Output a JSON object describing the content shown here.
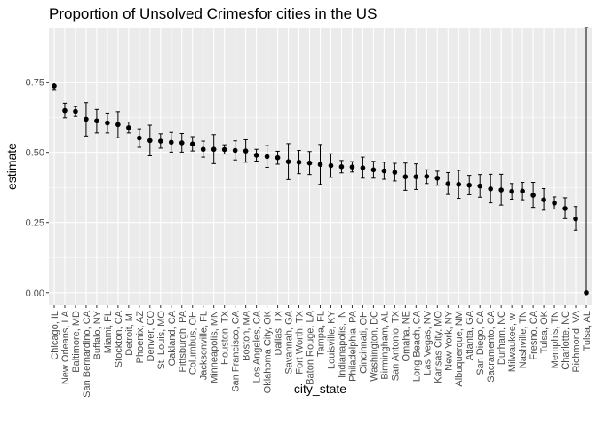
{
  "chart_data": {
    "type": "scatter",
    "title": "Proportion of Unsolved Crimesfor cities in the US",
    "xlabel": "city_state",
    "ylabel": "estimate",
    "ylim": [
      -0.045,
      0.945
    ],
    "yticks": [
      0.0,
      0.25,
      0.5,
      0.75
    ],
    "ytick_labels": [
      "0.00",
      "0.25",
      "0.50",
      "0.75"
    ],
    "grid": true,
    "colors": {
      "panel": "#ebebeb",
      "grid": "#ffffff",
      "point": "#000000"
    },
    "series": [
      {
        "categories": [
          "Chicago, IL",
          "New Orleans, LA",
          "Baltimore, MD",
          "San Bernardino, CA",
          "Buffalo, NY",
          "Miami, FL",
          "Stockton, CA",
          "Detroit, MI",
          "Phoenix, AZ",
          "Denver, CO",
          "St. Louis, MO",
          "Oakland, CA",
          "Pittsburgh, PA",
          "Columbus, OH",
          "Jacksonville, FL",
          "Minneapolis, MN",
          "Houston, TX",
          "San Francisco, CA",
          "Boston, MA",
          "Los Angeles, CA",
          "Oklahoma City, OK",
          "Dallas, TX",
          "Savannah, GA",
          "Fort Worth, TX",
          "Baton Rouge, LA",
          "Tampa, FL",
          "Louisville, KY",
          "Indianapolis, IN",
          "Philadelphia, PA",
          "Cincinnati, OH",
          "Washington, DC",
          "Birmingham, AL",
          "San Antonio, TX",
          "Omaha, NE",
          "Long Beach, CA",
          "Las Vegas, NV",
          "Kansas City, MO",
          "New York, NY",
          "Albuquerque, NM",
          "Atlanta, GA",
          "San Diego, CA",
          "Sacramento, CA",
          "Durham, NC",
          "Milwaukee, wI",
          "Nashville, TN",
          "Fresno, CA",
          "Tulsa, OK",
          "Memphis, TN",
          "Charlotte, NC",
          "Richmond, VA",
          "Tulsa, AL"
        ],
        "estimate": [
          0.736,
          0.649,
          0.646,
          0.618,
          0.612,
          0.605,
          0.599,
          0.588,
          0.551,
          0.542,
          0.54,
          0.536,
          0.534,
          0.53,
          0.511,
          0.511,
          0.51,
          0.507,
          0.505,
          0.49,
          0.485,
          0.481,
          0.467,
          0.465,
          0.462,
          0.457,
          0.453,
          0.449,
          0.448,
          0.445,
          0.438,
          0.434,
          0.429,
          0.413,
          0.413,
          0.414,
          0.408,
          0.388,
          0.386,
          0.383,
          0.38,
          0.37,
          0.366,
          0.361,
          0.362,
          0.347,
          0.331,
          0.319,
          0.3,
          0.263,
          0.0
        ],
        "conf_low": [
          0.724,
          0.623,
          0.628,
          0.558,
          0.569,
          0.569,
          0.552,
          0.569,
          0.518,
          0.488,
          0.515,
          0.501,
          0.501,
          0.505,
          0.483,
          0.46,
          0.494,
          0.473,
          0.465,
          0.469,
          0.447,
          0.458,
          0.403,
          0.424,
          0.421,
          0.386,
          0.411,
          0.427,
          0.43,
          0.408,
          0.408,
          0.404,
          0.398,
          0.365,
          0.368,
          0.389,
          0.383,
          0.35,
          0.336,
          0.349,
          0.34,
          0.32,
          0.312,
          0.333,
          0.331,
          0.304,
          0.294,
          0.298,
          0.264,
          0.223,
          0.0
        ],
        "conf_high": [
          0.747,
          0.675,
          0.663,
          0.677,
          0.653,
          0.64,
          0.645,
          0.608,
          0.584,
          0.597,
          0.566,
          0.571,
          0.567,
          0.556,
          0.54,
          0.563,
          0.527,
          0.541,
          0.545,
          0.511,
          0.524,
          0.504,
          0.531,
          0.507,
          0.503,
          0.528,
          0.495,
          0.471,
          0.467,
          0.483,
          0.468,
          0.465,
          0.461,
          0.462,
          0.459,
          0.438,
          0.433,
          0.428,
          0.436,
          0.418,
          0.421,
          0.422,
          0.422,
          0.389,
          0.393,
          0.393,
          0.371,
          0.341,
          0.338,
          0.307,
          0.945
        ]
      }
    ]
  }
}
